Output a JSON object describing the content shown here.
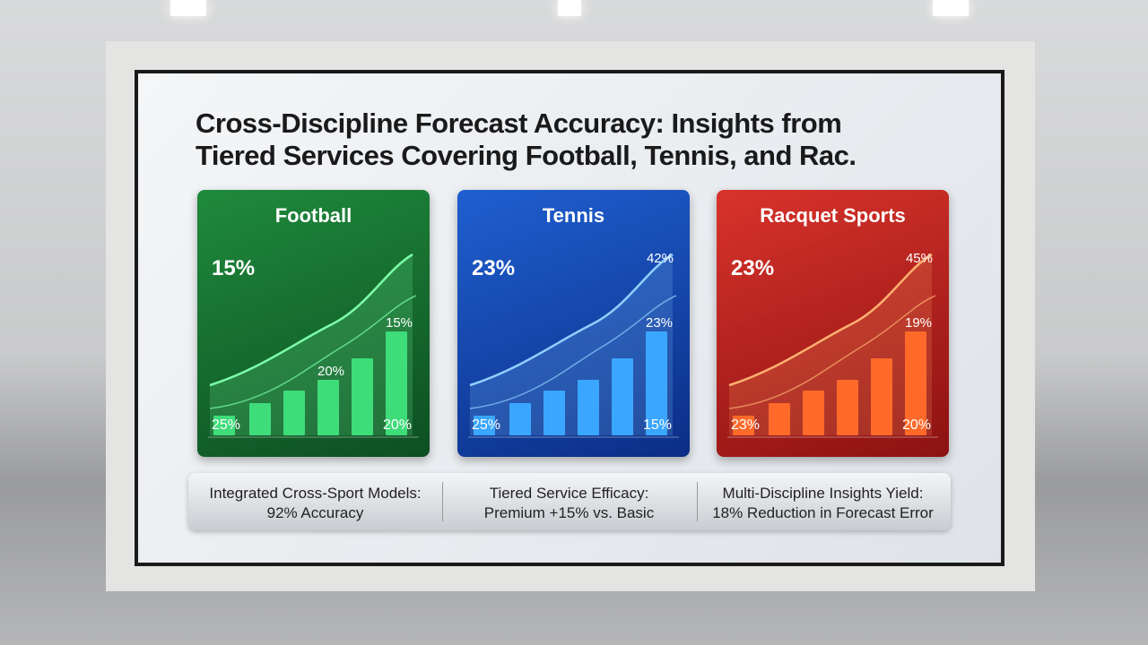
{
  "header": {
    "title_lines": [
      "Cross-Discipline Forecast Accuracy: Insights from",
      "Tiered Services Covering Football, Tennis, and Rac."
    ]
  },
  "panels": [
    {
      "name": "Football",
      "headline": "15%",
      "top_right": "",
      "last_bar": "15%",
      "mid_bar": "20%",
      "bottom_left": "25%",
      "bottom_right": "20%"
    },
    {
      "name": "Tennis",
      "headline": "23%",
      "top_right": "42%",
      "last_bar": "23%",
      "mid_bar": "",
      "bottom_left": "25%",
      "bottom_right": "15%"
    },
    {
      "name": "Racquet Sports",
      "headline": "23%",
      "top_right": "45%",
      "last_bar": "19%",
      "mid_bar": "",
      "bottom_left": "23%",
      "bottom_right": "20%"
    }
  ],
  "footer": [
    {
      "line1": "Integrated Cross-Sport Models:",
      "line2": "92% Accuracy"
    },
    {
      "line1": "Tiered Service Efficacy:",
      "line2": "Premium +15% vs. Basic"
    },
    {
      "line1": "Multi-Discipline Insights Yield:",
      "line2": "18% Reduction in Forecast Error"
    }
  ]
}
